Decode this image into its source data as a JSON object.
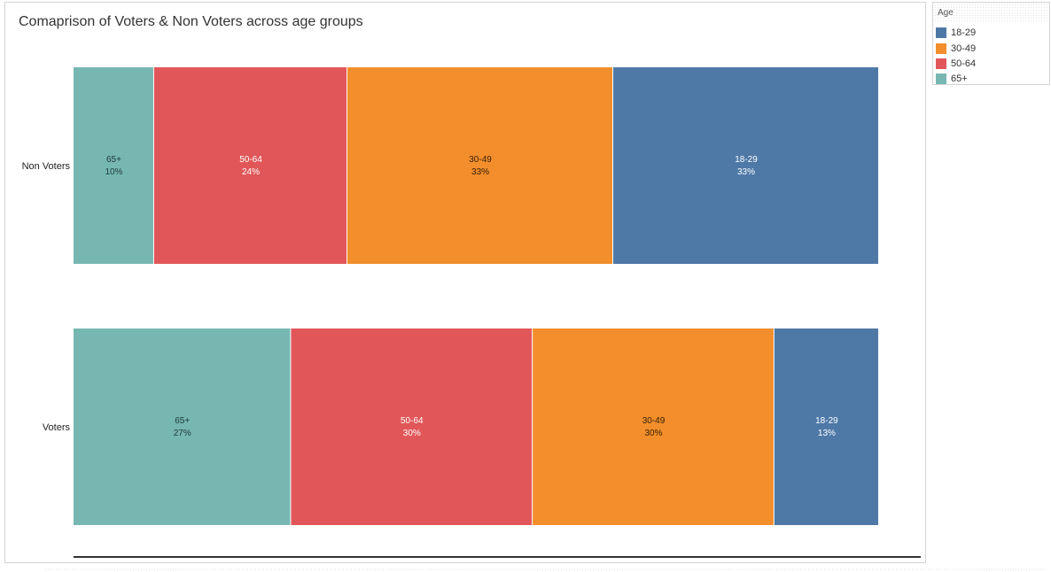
{
  "chart_data": {
    "type": "bar",
    "orientation": "horizontal",
    "stacked": true,
    "normalized": true,
    "title": "Comaprison of Voters & Non Voters across age groups",
    "categories": [
      "Non Voters",
      "Voters"
    ],
    "series": [
      {
        "name": "65+",
        "color": "#76b7b2",
        "label_color": "#1f3b3a",
        "values": [
          10,
          27
        ],
        "labels": [
          "10%",
          "27%"
        ]
      },
      {
        "name": "50-64",
        "color": "#e15759",
        "label_color": "#ffffff",
        "values": [
          24,
          30
        ],
        "labels": [
          "24%",
          "30%"
        ]
      },
      {
        "name": "30-49",
        "color": "#f28e2b",
        "label_color": "#3a2208",
        "values": [
          33,
          30
        ],
        "labels": [
          "33%",
          "30%"
        ]
      },
      {
        "name": "18-29",
        "color": "#4e79a7",
        "label_color": "#ffffff",
        "values": [
          33,
          13
        ],
        "labels": [
          "33%",
          "13%"
        ]
      }
    ],
    "grid": false,
    "legend_position": "top-right"
  },
  "legend": {
    "title": "Age",
    "items": [
      {
        "label": "18-29",
        "color": "#4e79a7"
      },
      {
        "label": "30-49",
        "color": "#f28e2b"
      },
      {
        "label": "50-64",
        "color": "#e15759"
      },
      {
        "label": "65+",
        "color": "#76b7b2"
      }
    ]
  }
}
